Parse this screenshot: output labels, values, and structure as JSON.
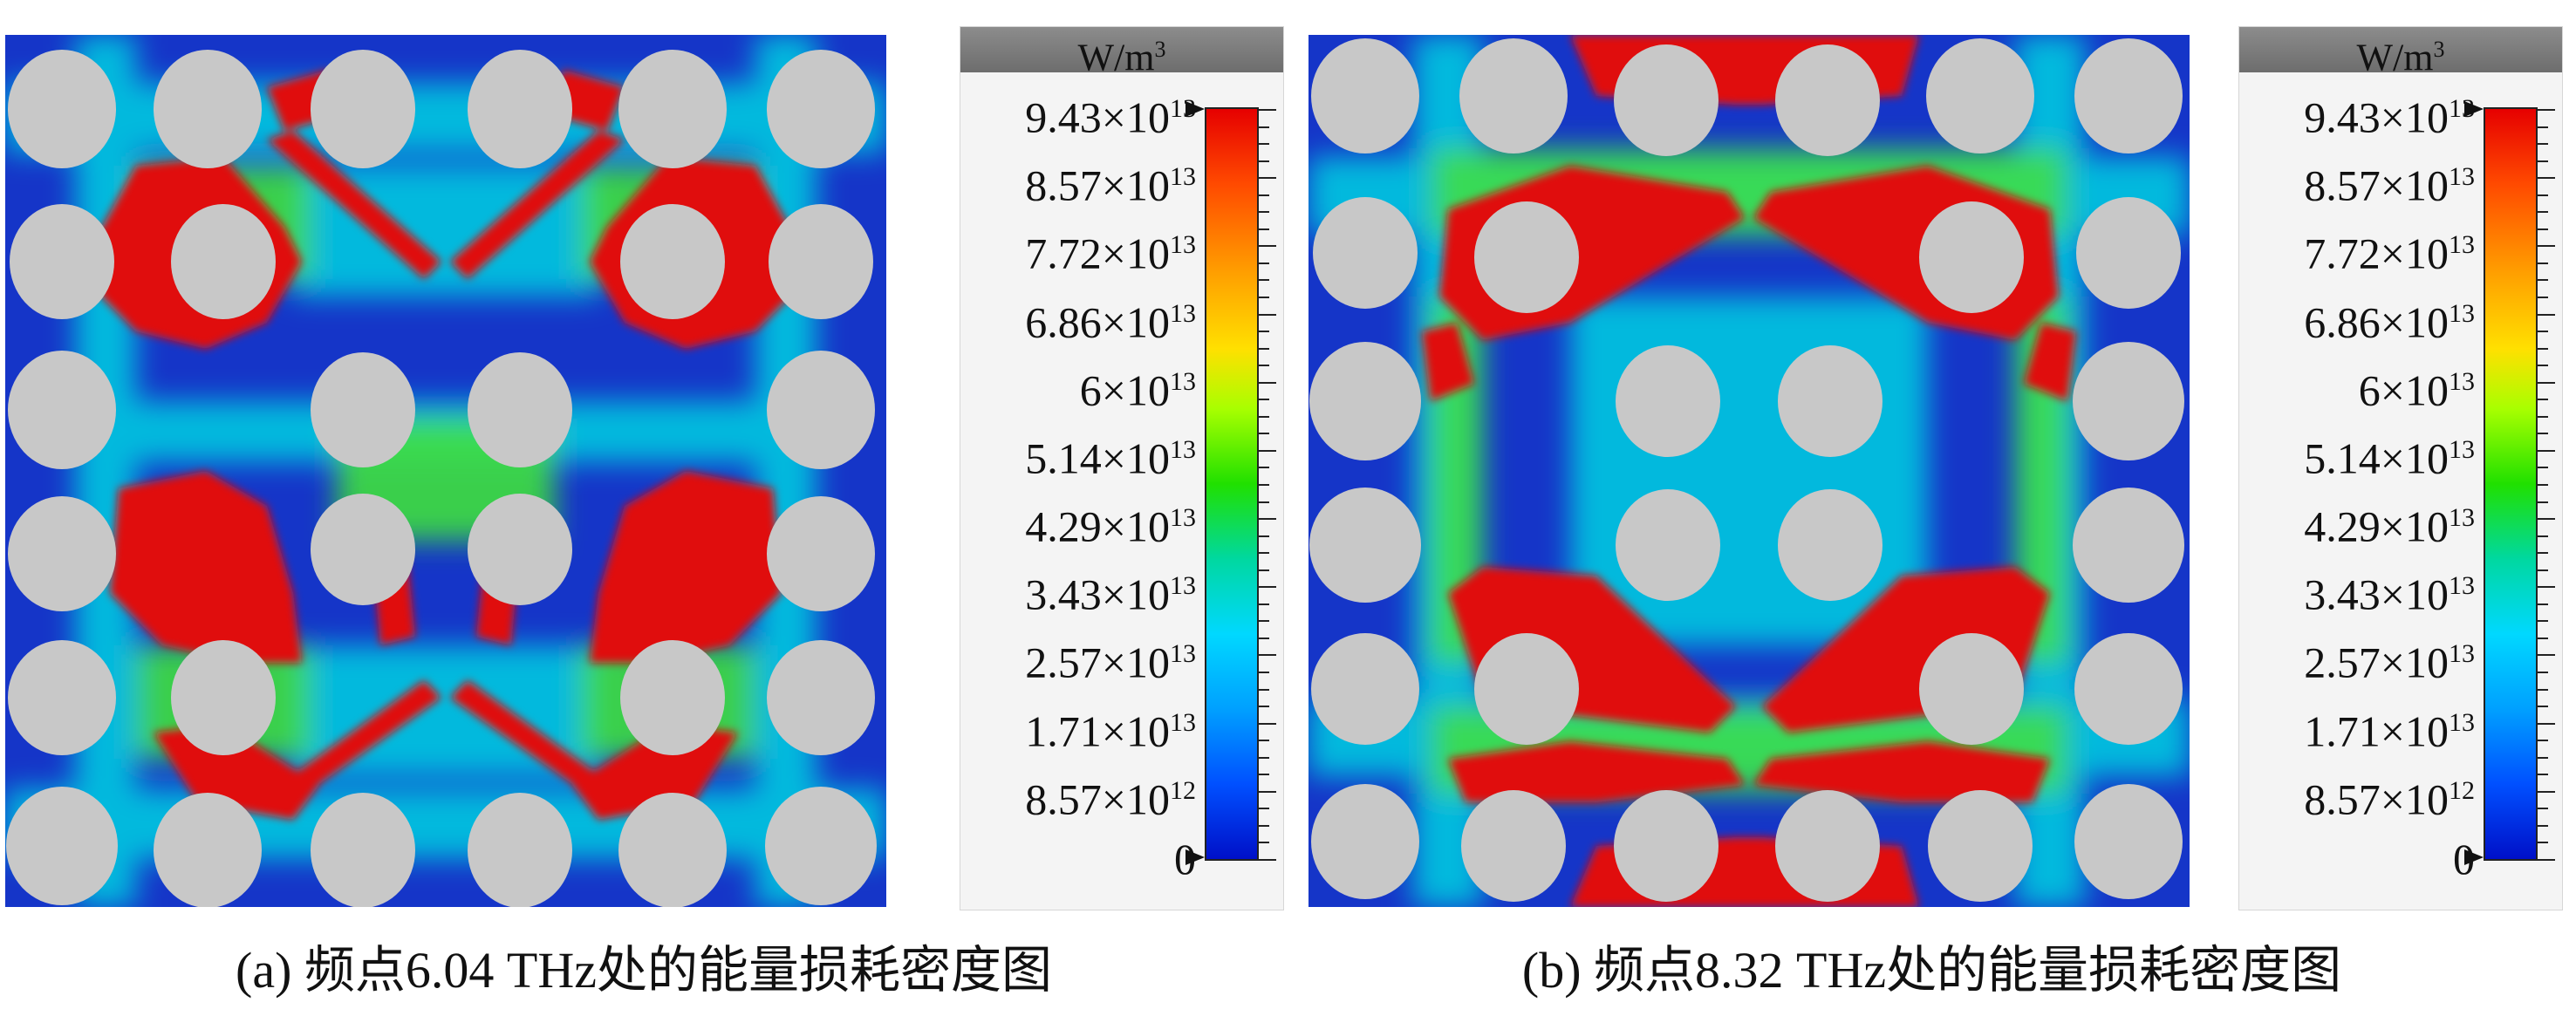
{
  "panels": [
    {
      "id": "a",
      "caption": "(a) 频点6.04 THz处的能量损耗密度图",
      "colorbar": {
        "unit_base": "W/m",
        "unit_exp": "3",
        "labels": [
          {
            "mant": "9.43×10",
            "exp": "13"
          },
          {
            "mant": "8.57×10",
            "exp": "13"
          },
          {
            "mant": "7.72×10",
            "exp": "13"
          },
          {
            "mant": "6.86×10",
            "exp": "13"
          },
          {
            "mant": "6×10",
            "exp": "13"
          },
          {
            "mant": "5.14×10",
            "exp": "13"
          },
          {
            "mant": "4.29×10",
            "exp": "13"
          },
          {
            "mant": "3.43×10",
            "exp": "13"
          },
          {
            "mant": "2.57×10",
            "exp": "13"
          },
          {
            "mant": "1.71×10",
            "exp": "13"
          },
          {
            "mant": "8.57×10",
            "exp": "12"
          },
          {
            "mant": "0",
            "exp": ""
          }
        ]
      }
    },
    {
      "id": "b",
      "caption": "(b) 频点8.32 THz处的能量损耗密度图",
      "colorbar": {
        "unit_base": "W/m",
        "unit_exp": "3",
        "labels": [
          {
            "mant": "9.43×10",
            "exp": "13"
          },
          {
            "mant": "8.57×10",
            "exp": "13"
          },
          {
            "mant": "7.72×10",
            "exp": "13"
          },
          {
            "mant": "6.86×10",
            "exp": "13"
          },
          {
            "mant": "6×10",
            "exp": "13"
          },
          {
            "mant": "5.14×10",
            "exp": "13"
          },
          {
            "mant": "4.29×10",
            "exp": "13"
          },
          {
            "mant": "3.43×10",
            "exp": "13"
          },
          {
            "mant": "2.57×10",
            "exp": "13"
          },
          {
            "mant": "1.71×10",
            "exp": "13"
          },
          {
            "mant": "8.57×10",
            "exp": "12"
          },
          {
            "mant": "0",
            "exp": ""
          }
        ]
      }
    }
  ],
  "colors": {
    "background_blue": "#1535c8",
    "hot_red": "#e01010",
    "hole_gray": "#c8c8c8"
  }
}
